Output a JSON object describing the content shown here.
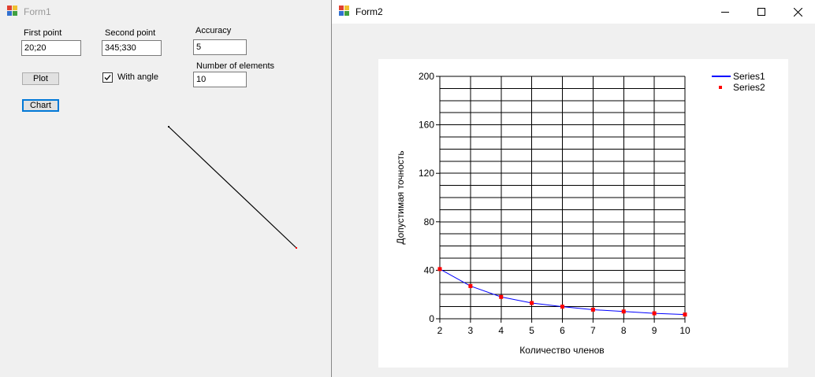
{
  "form1": {
    "title": "Form1",
    "first_point": {
      "label": "First point",
      "value": "20;20"
    },
    "second_point": {
      "label": "Second point",
      "value": "345;330"
    },
    "accuracy": {
      "label": "Accuracy",
      "value": "5"
    },
    "num_elements": {
      "label": "Number of elements",
      "value": "10"
    },
    "plot_button": "Plot",
    "chart_button": "Chart",
    "with_angle": {
      "label": "With angle",
      "checked": true
    }
  },
  "form2": {
    "title": "Form2",
    "controls": {
      "minimize": "minimize-icon",
      "maximize": "maximize-icon",
      "close": "close-icon"
    }
  },
  "chart_data": {
    "type": "line",
    "xlabel": "Количество членов",
    "ylabel": "Допустимая точность",
    "xlim": [
      2,
      10
    ],
    "ylim": [
      0,
      200
    ],
    "x_ticks": [
      "2",
      "3",
      "4",
      "5",
      "6",
      "7",
      "8",
      "9",
      "10"
    ],
    "y_ticks": [
      "0",
      "40",
      "80",
      "120",
      "160",
      "200"
    ],
    "grid": true,
    "legend_position": "top-right",
    "x": [
      2,
      3,
      4,
      5,
      6,
      7,
      8,
      9,
      10
    ],
    "series": [
      {
        "name": "Series1",
        "kind": "line",
        "color": "#0000ff",
        "values": [
          41,
          27,
          18,
          13,
          10,
          7.5,
          6,
          4.5,
          3.5
        ]
      },
      {
        "name": "Series2",
        "kind": "point",
        "color": "#ff0000",
        "values": [
          41,
          27,
          18,
          13,
          10,
          7.5,
          6,
          4.5,
          3.5
        ]
      }
    ]
  }
}
